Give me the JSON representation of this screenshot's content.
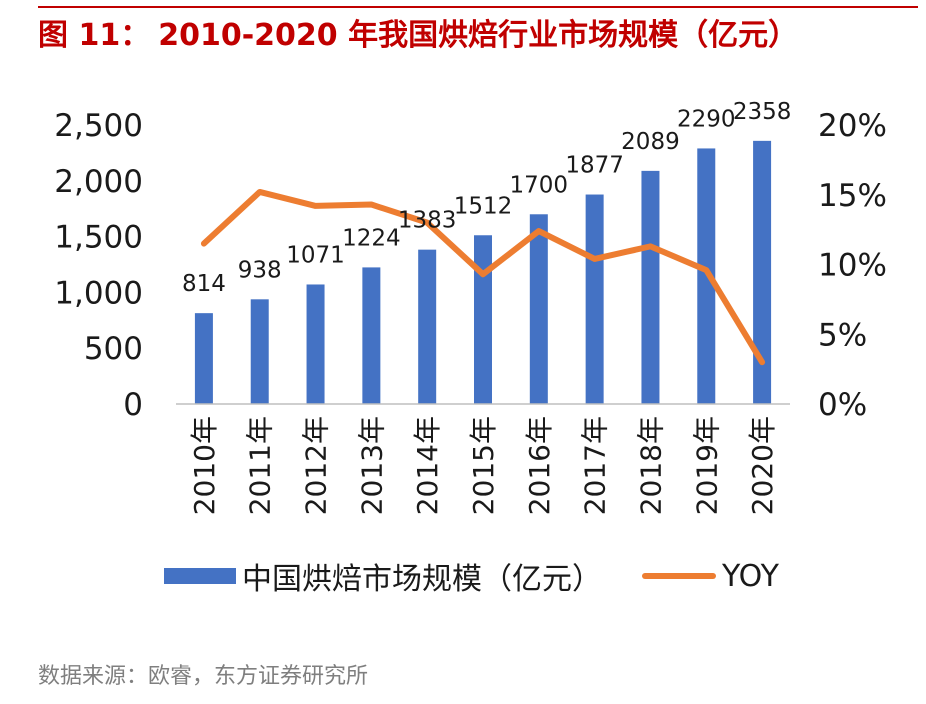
{
  "title": {
    "figure_number": "图 11：",
    "text": "2010-2020 年我国烘焙行业市场规模（亿元）"
  },
  "source": "数据来源：欧睿，东方证券研究所",
  "colors": {
    "title": "#c00000",
    "bar": "#4472c4",
    "line": "#ed7d31",
    "source": "#7f7f7f"
  },
  "chart_data": {
    "type": "bar",
    "categories": [
      "2010年",
      "2011年",
      "2012年",
      "2013年",
      "2014年",
      "2015年",
      "2016年",
      "2017年",
      "2018年",
      "2019年",
      "2020年"
    ],
    "series": [
      {
        "name": "中国烘焙市场规模（亿元）",
        "type": "bar",
        "axis": "left",
        "values": [
          814,
          938,
          1071,
          1224,
          1383,
          1512,
          1700,
          1877,
          2089,
          2290,
          2358
        ],
        "data_labels": [
          "814",
          "938",
          "1071",
          "1224",
          "1383",
          "1512",
          "1700",
          "1877",
          "2089",
          "2290",
          "2358"
        ]
      },
      {
        "name": "YOY",
        "type": "line",
        "axis": "right",
        "values": [
          11.5,
          15.2,
          14.2,
          14.3,
          13.0,
          9.3,
          12.4,
          10.4,
          11.3,
          9.6,
          3.0
        ]
      }
    ],
    "y_left": {
      "min": 0,
      "max": 2500,
      "ticks": [
        0,
        500,
        1000,
        1500,
        2000,
        2500
      ],
      "tick_labels": [
        "0",
        "500",
        "1,000",
        "1,500",
        "2,000",
        "2,500"
      ]
    },
    "y_right": {
      "min": 0,
      "max": 20,
      "ticks": [
        0,
        5,
        10,
        15,
        20
      ],
      "tick_labels": [
        "0%",
        "5%",
        "10%",
        "15%",
        "20%"
      ]
    },
    "grid": false,
    "legend_position": "bottom"
  }
}
